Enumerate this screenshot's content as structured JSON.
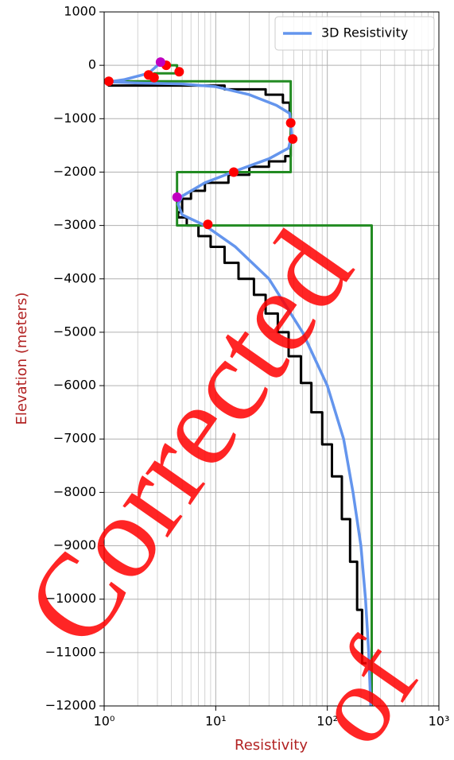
{
  "chart_data": {
    "type": "line",
    "xlabel": "Resistivity",
    "ylabel": "Elevation (meters)",
    "xscale": "log",
    "xlim": [
      1,
      1000
    ],
    "ylim": [
      -12000,
      1000
    ],
    "xticks": [
      {
        "value": 1,
        "label": "10⁰"
      },
      {
        "value": 10,
        "label": "10¹"
      },
      {
        "value": 100,
        "label": "10²"
      },
      {
        "value": 1000,
        "label": "10³"
      }
    ],
    "yticks": [
      {
        "value": 1000,
        "label": "1000"
      },
      {
        "value": 0,
        "label": "0"
      },
      {
        "value": -1000,
        "label": "−1000"
      },
      {
        "value": -2000,
        "label": "−2000"
      },
      {
        "value": -3000,
        "label": "−3000"
      },
      {
        "value": -4000,
        "label": "−4000"
      },
      {
        "value": -5000,
        "label": "−5000"
      },
      {
        "value": -6000,
        "label": "−6000"
      },
      {
        "value": -7000,
        "label": "−7000"
      },
      {
        "value": -8000,
        "label": "−8000"
      },
      {
        "value": -9000,
        "label": "−9000"
      },
      {
        "value": -10000,
        "label": "−10000"
      },
      {
        "value": -11000,
        "label": "−11000"
      },
      {
        "value": -12000,
        "label": "−12000"
      }
    ],
    "grid": true,
    "minor_grid": true,
    "legend": "upper right",
    "watermark": [
      "Corrected",
      "of"
    ],
    "series": [
      {
        "color": "#000000",
        "drawstyle": "steps",
        "x": [
          1.1,
          12,
          28,
          40,
          46,
          47,
          47,
          42,
          30,
          20,
          13,
          8,
          6,
          5,
          4.6,
          5.5,
          7,
          9,
          12,
          16,
          22,
          28,
          36,
          45,
          58,
          72,
          90,
          110,
          135,
          160,
          185,
          205,
          225
        ],
        "values": [
          -350,
          -380,
          -450,
          -550,
          -700,
          -900,
          -1500,
          -1700,
          -1800,
          -1900,
          -2050,
          -2200,
          -2350,
          -2500,
          -2750,
          -2850,
          -3000,
          -3200,
          -3400,
          -3700,
          -4000,
          -4300,
          -4650,
          -5000,
          -5450,
          -5950,
          -6500,
          -7100,
          -7700,
          -8500,
          -9300,
          -10200,
          -11200
        ]
      },
      {
        "color": "#228b22",
        "x": [
          3.3,
          4.5,
          4.5,
          2.8,
          2.8,
          1.1,
          47,
          47,
          4.5,
          4.5,
          250,
          250
        ],
        "values": [
          0,
          0,
          -150,
          -150,
          -300,
          -300,
          -300,
          -2000,
          -2000,
          -3000,
          -3000,
          -12000
        ]
      },
      {
        "name": "3D Resistivity",
        "color": "#6495ed",
        "x": [
          3.2,
          2.5,
          1.5,
          1.1,
          2,
          5,
          10,
          20,
          35,
          46,
          47,
          48,
          45,
          30,
          15,
          8,
          5,
          4.6,
          5,
          8,
          15,
          30,
          60,
          100,
          140,
          170,
          200,
          220,
          235,
          245
        ],
        "values": [
          50,
          -150,
          -270,
          -310,
          -330,
          -350,
          -400,
          -550,
          -750,
          -900,
          -1100,
          -1300,
          -1550,
          -1750,
          -1980,
          -2200,
          -2450,
          -2600,
          -2800,
          -3000,
          -3400,
          -4000,
          -5000,
          -6000,
          -7000,
          -8000,
          -9000,
          -10000,
          -11000,
          -12000
        ]
      },
      {
        "color": "#ff0000",
        "marker": "o",
        "x": [
          1.1,
          2.5,
          2.8,
          4.7,
          3.6,
          47,
          49,
          14.5,
          8.5
        ],
        "values": [
          -300,
          -180,
          -230,
          -120,
          0,
          -1080,
          -1380,
          -2000,
          -2980
        ]
      },
      {
        "color": "#c000c0",
        "marker": "o",
        "x": [
          3.2,
          4.5
        ],
        "values": [
          60,
          -2470
        ]
      }
    ]
  }
}
